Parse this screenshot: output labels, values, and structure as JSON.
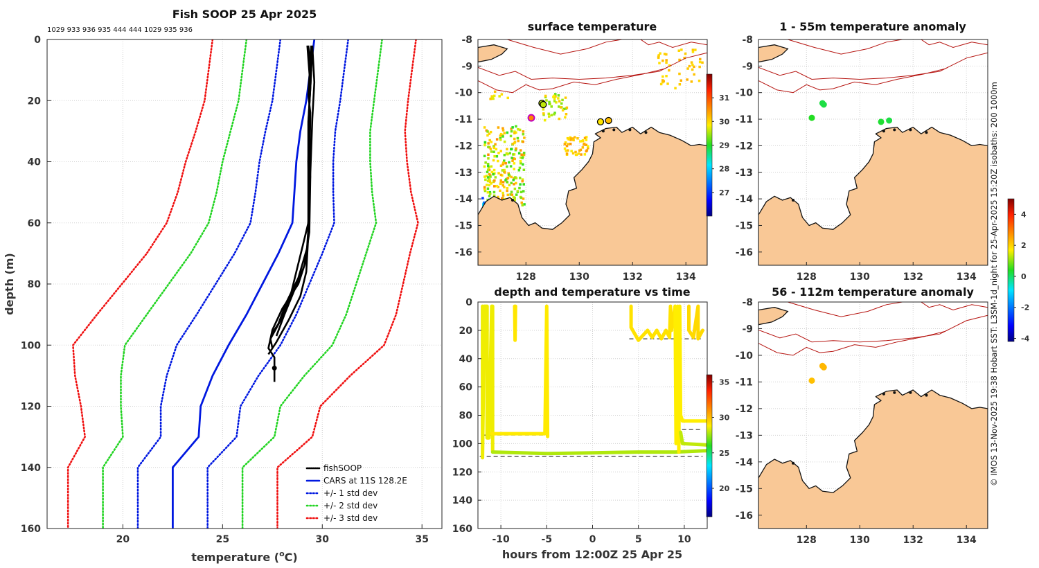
{
  "colors": {
    "land": "#f9c896",
    "isobath": "#b5120e",
    "coast": "#111111",
    "grid": "#d0d0d0",
    "fish": "#000000",
    "cars": "#0018e0",
    "std1": "#0018e0",
    "std2": "#22d422",
    "std3": "#ef1010"
  },
  "credit": "© IMOS 13-Nov-2025 19:38 Hobart SST: L3SM-1d_night for 25-Apr-2025 15:20Z isobaths: 200  1000m",
  "chart_data": [
    {
      "id": "profile",
      "type": "line",
      "title": "Fish SOOP 25 Apr 2025",
      "subtitle": "1029 933 936 935 444 444 1029 935 936",
      "xlabel_main": "temperature (",
      "xlabel_sup": "o",
      "xlabel_end": "C)",
      "ylabel": "depth (m)",
      "xlim": [
        16.2,
        36.0
      ],
      "ylim": [
        0,
        160
      ],
      "xticks": [
        20,
        25,
        30,
        35
      ],
      "yticks": [
        0,
        20,
        40,
        60,
        80,
        100,
        120,
        140,
        160
      ],
      "depths": [
        0,
        10,
        20,
        30,
        40,
        50,
        60,
        70,
        80,
        90,
        100,
        110,
        120,
        130,
        140,
        160
      ],
      "cars_mean": [
        29.6,
        29.4,
        29.2,
        28.9,
        28.7,
        28.6,
        28.5,
        27.8,
        27.0,
        26.2,
        25.3,
        24.5,
        23.9,
        23.8,
        22.5,
        22.5
      ],
      "cars_std": [
        1.7,
        1.7,
        1.7,
        1.75,
        1.85,
        1.95,
        2.1,
        2.2,
        2.35,
        2.5,
        2.6,
        2.3,
        2.0,
        1.9,
        1.75,
        1.75
      ],
      "casts": [
        [
          [
            29.25,
            2
          ],
          [
            29.4,
            15
          ],
          [
            29.3,
            28
          ],
          [
            29.3,
            45
          ],
          [
            29.3,
            62
          ],
          [
            29.2,
            72
          ],
          [
            28.8,
            80
          ],
          [
            28.0,
            88
          ],
          [
            27.5,
            95
          ],
          [
            27.3,
            101
          ],
          [
            27.6,
            104
          ],
          [
            27.6,
            107
          ],
          [
            27.6,
            112
          ]
        ],
        [
          [
            29.5,
            2
          ],
          [
            29.6,
            14
          ],
          [
            29.5,
            26
          ],
          [
            29.4,
            44
          ],
          [
            29.3,
            60
          ],
          [
            29.0,
            68
          ],
          [
            28.7,
            76
          ],
          [
            28.4,
            84
          ],
          [
            27.9,
            92
          ],
          [
            27.4,
            98
          ],
          [
            27.5,
            101
          ]
        ],
        [
          [
            29.5,
            3
          ],
          [
            29.4,
            16
          ],
          [
            29.3,
            27
          ],
          [
            29.4,
            45
          ],
          [
            29.35,
            63
          ],
          [
            29.1,
            74
          ],
          [
            28.6,
            82
          ],
          [
            28.1,
            90
          ],
          [
            27.7,
            97
          ]
        ],
        [
          [
            29.45,
            2
          ],
          [
            29.3,
            18
          ],
          [
            29.4,
            24
          ],
          [
            29.35,
            46
          ],
          [
            29.3,
            64
          ],
          [
            29.2,
            76
          ],
          [
            28.9,
            84
          ],
          [
            28.3,
            92
          ],
          [
            27.7,
            99
          ],
          [
            27.3,
            103
          ]
        ],
        [
          [
            29.3,
            2
          ],
          [
            29.45,
            10
          ],
          [
            29.35,
            22
          ],
          [
            29.3,
            40
          ],
          [
            29.35,
            58
          ],
          [
            29.25,
            68
          ],
          [
            28.8,
            78
          ],
          [
            28.2,
            86
          ],
          [
            27.8,
            93
          ],
          [
            27.5,
            96
          ]
        ]
      ],
      "legend": [
        "fishSOOP",
        "CARS at 11S 128.2E",
        "+/- 1 std dev",
        "+/- 2 std dev",
        "+/- 3 std dev"
      ]
    },
    {
      "id": "surface",
      "type": "heatmap",
      "title": "surface temperature",
      "xlim": [
        126.2,
        134.8
      ],
      "ylim": [
        -16.5,
        -8
      ],
      "xticks": [
        128,
        130,
        132,
        134
      ],
      "yticks": [
        -8,
        -9,
        -10,
        -11,
        -12,
        -13,
        -14,
        -15,
        -16
      ],
      "colorbar": {
        "min": 26.0,
        "max": 32.0,
        "ticks": [
          27,
          28,
          29,
          30,
          31
        ]
      },
      "points": [
        [
          128.6,
          -10.4
        ],
        [
          128.65,
          -10.45
        ],
        [
          130.8,
          -11.1
        ],
        [
          131.1,
          -11.05
        ],
        [
          128.2,
          -10.95
        ]
      ],
      "point_values": [
        29.6,
        29.6,
        29.9,
        30.2,
        30.6
      ]
    },
    {
      "id": "depth_time",
      "type": "scatter",
      "title": "depth and temperature vs time",
      "xlabel": "hours from 12:00Z 25 Apr 25",
      "xlim": [
        -12.5,
        12.5
      ],
      "ylim": [
        0,
        160
      ],
      "xticks": [
        -10,
        -5,
        0,
        5,
        10
      ],
      "yticks": [
        0,
        20,
        40,
        60,
        80,
        100,
        120,
        140,
        160
      ],
      "colorbar": {
        "min": 16.0,
        "max": 36.0,
        "ticks": [
          20,
          25,
          30,
          35
        ]
      },
      "dashed_depths": [
        [
          -11.9,
          -4.9,
          94
        ],
        [
          -12.3,
          12.0,
          109
        ],
        [
          4.0,
          11.8,
          26
        ],
        [
          9.0,
          12.0,
          90
        ],
        [
          9.0,
          12.0,
          106
        ]
      ]
    },
    {
      "id": "anom1",
      "type": "heatmap",
      "title": "1 - 55m temperature anomaly",
      "xlim": [
        126.2,
        134.8
      ],
      "ylim": [
        -16.5,
        -8
      ],
      "xticks": [
        128,
        130,
        132,
        134
      ],
      "yticks": [
        -8,
        -9,
        -10,
        -11,
        -12,
        -13,
        -14,
        -15,
        -16
      ],
      "points": [
        [
          128.6,
          -10.4
        ],
        [
          128.65,
          -10.45
        ],
        [
          130.8,
          -11.1
        ],
        [
          131.1,
          -11.05
        ],
        [
          128.2,
          -10.95
        ]
      ],
      "point_values": [
        0.2,
        0.2,
        0.3,
        0.2,
        0.4
      ]
    },
    {
      "id": "anom2",
      "type": "heatmap",
      "title": "56 - 112m temperature anomaly",
      "xlim": [
        126.2,
        134.8
      ],
      "ylim": [
        -16.5,
        -8
      ],
      "xticks": [
        128,
        130,
        132,
        134
      ],
      "yticks": [
        -8,
        -9,
        -10,
        -11,
        -12,
        -13,
        -14,
        -15,
        -16
      ],
      "colorbar": {
        "min": -4.2,
        "max": 5.0,
        "ticks": [
          -4,
          -2,
          0,
          2,
          4
        ]
      },
      "points": [
        [
          128.6,
          -10.4
        ],
        [
          128.65,
          -10.45
        ],
        [
          128.2,
          -10.95
        ]
      ],
      "point_values": [
        2.3,
        2.3,
        2.2
      ]
    }
  ]
}
